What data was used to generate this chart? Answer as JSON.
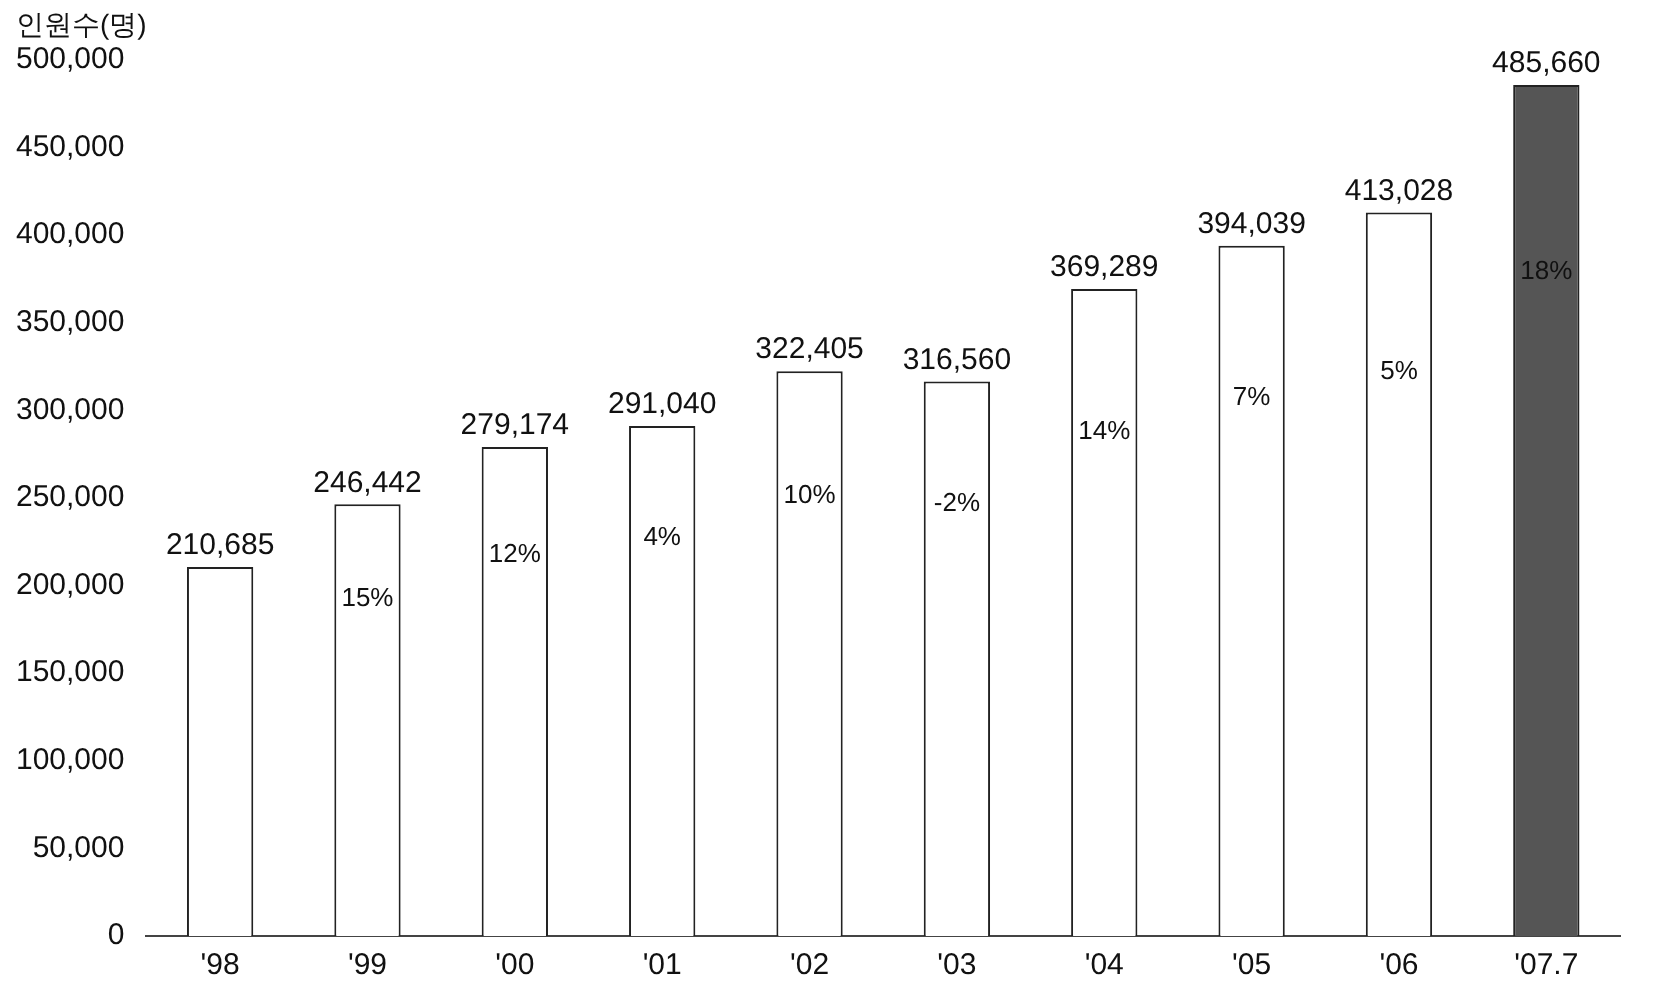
{
  "chart_data": {
    "type": "bar",
    "ylabel": "인원수(명)",
    "categories": [
      "'98",
      "'99",
      "'00",
      "'01",
      "'02",
      "'03",
      "'04",
      "'05",
      "'06",
      "'07.7"
    ],
    "values": [
      210685,
      246442,
      279174,
      291040,
      322405,
      316560,
      369289,
      394039,
      413028,
      485660
    ],
    "value_labels": [
      "210,685",
      "246,442",
      "279,174",
      "291,040",
      "322,405",
      "316,560",
      "369,289",
      "394,039",
      "413,028",
      "485,660"
    ],
    "colors": [
      "#ffffff",
      "#ffffff",
      "#ffffff",
      "#ffffff",
      "#ffffff",
      "#ffffff",
      "#ffffff",
      "#ffffff",
      "#ffffff",
      "#555555"
    ],
    "ylim": [
      0,
      500000
    ],
    "yticks": [
      {
        "value": 0,
        "label": "0"
      },
      {
        "value": 50000,
        "label": "50,000"
      },
      {
        "value": 100000,
        "label": "100,000"
      },
      {
        "value": 150000,
        "label": "150,000"
      },
      {
        "value": 200000,
        "label": "200,000"
      },
      {
        "value": 250000,
        "label": "250,000"
      },
      {
        "value": 300000,
        "label": "300,000"
      },
      {
        "value": 350000,
        "label": "350,000"
      },
      {
        "value": 400000,
        "label": "400,000"
      },
      {
        "value": 450000,
        "label": "450,000"
      },
      {
        "value": 500000,
        "label": "500,000"
      }
    ],
    "annotations": [
      "15%",
      "12%",
      "4%",
      "10%",
      "-2%",
      "14%",
      "7%",
      "5%",
      "18%"
    ],
    "grid": false,
    "legend": false
  }
}
